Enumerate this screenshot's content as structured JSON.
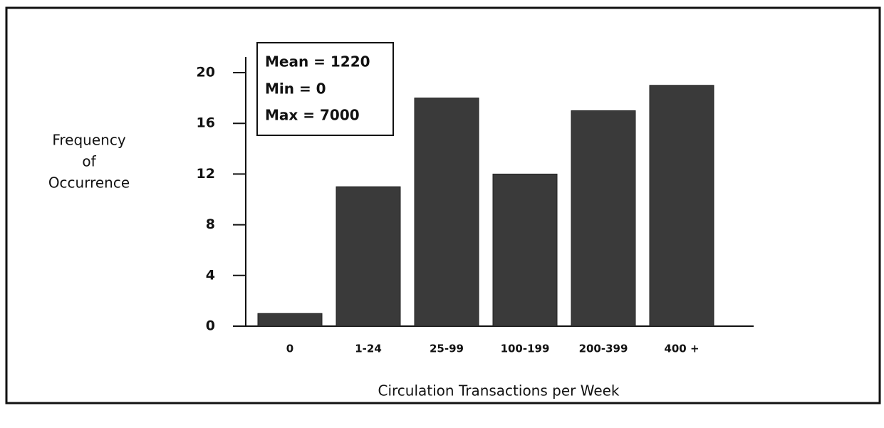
{
  "chart_data": {
    "type": "bar",
    "categories": [
      "0",
      "1-24",
      "25-99",
      "100-199",
      "200-399",
      "400 +"
    ],
    "values": [
      1,
      11,
      18,
      12,
      17,
      19
    ],
    "color": "#3a3a3a",
    "ylim": [
      0,
      20
    ],
    "yticks": [
      0,
      4,
      8,
      12,
      16,
      20
    ],
    "ylabel": [
      "Frequency",
      "of",
      "Occurrence"
    ],
    "xlabel": "Circulation Transactions per Week",
    "annotations": [
      "Mean = 1220",
      "Min = 0",
      "Max = 7000"
    ]
  }
}
